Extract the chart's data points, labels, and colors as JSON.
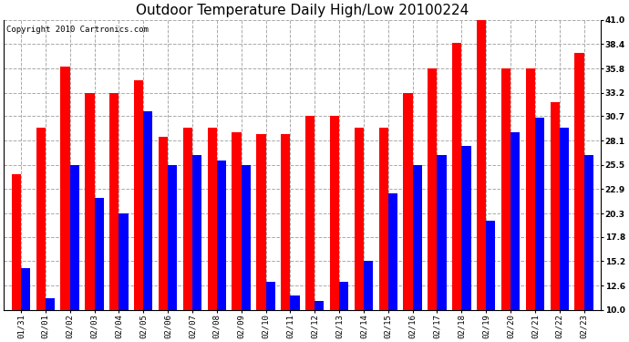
{
  "title": "Outdoor Temperature Daily High/Low 20100224",
  "copyright": "Copyright 2010 Cartronics.com",
  "dates": [
    "01/31",
    "02/01",
    "02/02",
    "02/03",
    "02/04",
    "02/05",
    "02/06",
    "02/07",
    "02/08",
    "02/09",
    "02/10",
    "02/11",
    "02/12",
    "02/13",
    "02/14",
    "02/15",
    "02/16",
    "02/17",
    "02/18",
    "02/19",
    "02/20",
    "02/21",
    "02/22",
    "02/23"
  ],
  "highs": [
    24.5,
    29.5,
    36.0,
    33.2,
    33.2,
    34.5,
    28.5,
    29.5,
    29.5,
    29.0,
    28.8,
    28.8,
    30.7,
    30.7,
    29.5,
    29.5,
    33.2,
    35.8,
    38.5,
    41.0,
    35.8,
    35.8,
    32.2,
    37.5
  ],
  "lows": [
    14.5,
    11.2,
    25.5,
    22.0,
    20.3,
    31.2,
    25.5,
    26.5,
    26.0,
    25.5,
    13.0,
    11.5,
    11.0,
    13.0,
    15.2,
    22.5,
    25.5,
    26.5,
    27.5,
    19.5,
    29.0,
    30.5,
    29.5,
    26.5
  ],
  "high_color": "#ff0000",
  "low_color": "#0000ff",
  "bg_color": "#ffffff",
  "grid_color": "#aaaaaa",
  "ylim_min": 10.0,
  "ylim_max": 41.0,
  "yticks": [
    10.0,
    12.6,
    15.2,
    17.8,
    20.3,
    22.9,
    25.5,
    28.1,
    30.7,
    33.2,
    35.8,
    38.4,
    41.0
  ],
  "title_fontsize": 11,
  "copyright_fontsize": 6.5,
  "tick_fontsize": 6.5,
  "bar_width": 0.38
}
